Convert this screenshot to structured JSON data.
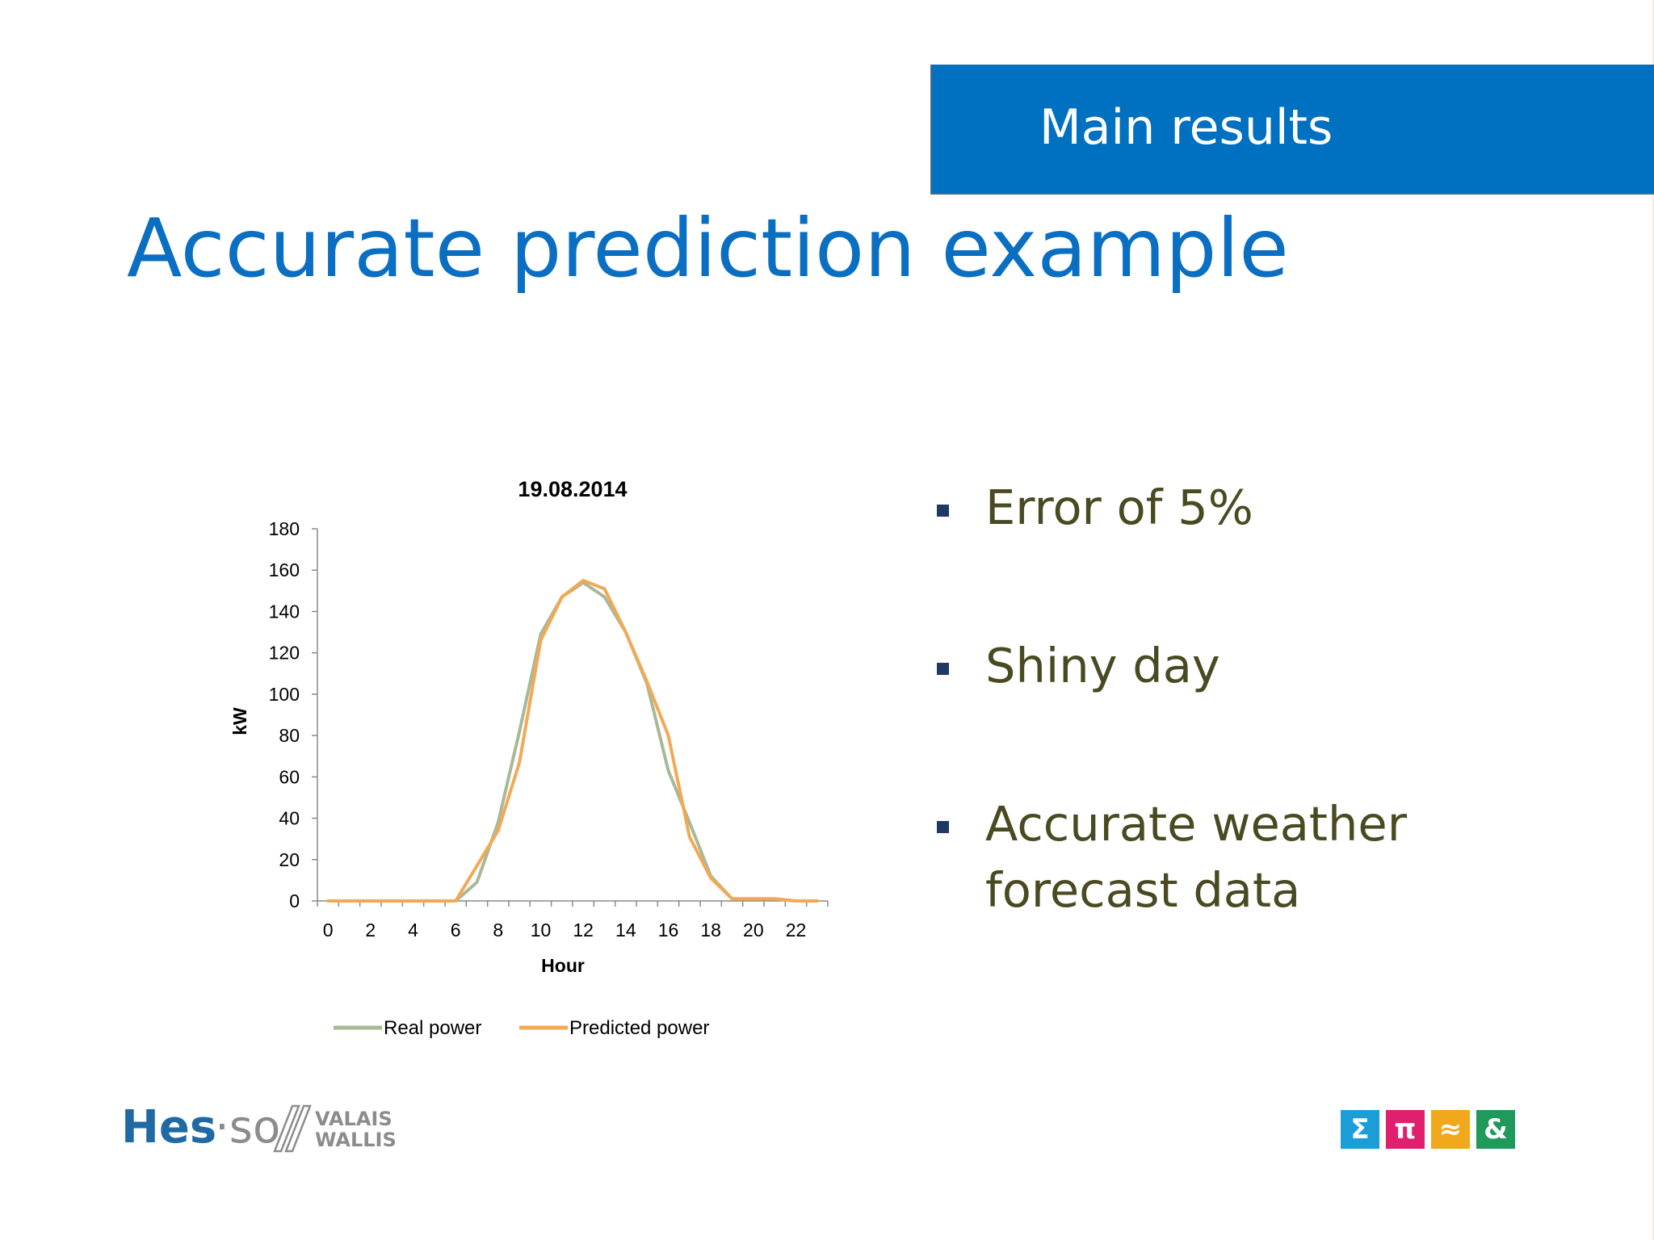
{
  "header": {
    "section": "Main results"
  },
  "slide": {
    "title": "Accurate prediction example"
  },
  "bullets": [
    {
      "lines": [
        "Error of 5%"
      ]
    },
    {
      "lines": [
        "Shiny day"
      ]
    },
    {
      "lines": [
        "Accurate weather",
        "forecast data"
      ]
    }
  ],
  "chart_data": {
    "type": "line",
    "title": "19.08.2014",
    "xlabel": "Hour",
    "ylabel": "kW",
    "ylim": [
      0,
      180
    ],
    "xlim": [
      0,
      23
    ],
    "y_ticks": [
      0,
      20,
      40,
      60,
      80,
      100,
      120,
      140,
      160,
      180
    ],
    "x_tick_labels": [
      0,
      2,
      4,
      6,
      8,
      10,
      12,
      14,
      16,
      18,
      20,
      22
    ],
    "grid": false,
    "legend_position": "bottom",
    "x": [
      0,
      1,
      2,
      3,
      4,
      5,
      6,
      7,
      8,
      9,
      10,
      11,
      12,
      13,
      14,
      15,
      16,
      17,
      18,
      19,
      20,
      21,
      22,
      23
    ],
    "series": [
      {
        "name": "Real power",
        "color": "#a9b896",
        "values": [
          0,
          0,
          0,
          0,
          0,
          0,
          0,
          9,
          38,
          82,
          129,
          147,
          154,
          147,
          130,
          105,
          63,
          38,
          12,
          1,
          1,
          1,
          0,
          0
        ]
      },
      {
        "name": "Predicted power",
        "color": "#f2a955",
        "values": [
          0,
          0,
          0,
          0,
          0,
          0,
          0,
          17,
          34,
          67,
          126,
          147,
          155,
          151,
          130,
          106,
          80,
          31,
          11,
          1,
          1,
          1,
          0,
          0
        ]
      }
    ]
  },
  "logos": {
    "left": {
      "hes": "Hes",
      "so": "·so",
      "valais": "VALAIS",
      "wallis": "WALLIS"
    },
    "right": [
      {
        "glyph": "Σ",
        "color": "#1b9ed8"
      },
      {
        "glyph": "π",
        "color": "#e0206e"
      },
      {
        "glyph": "≈",
        "color": "#f2a81d"
      },
      {
        "glyph": "&",
        "color": "#1f9a5a"
      }
    ]
  }
}
